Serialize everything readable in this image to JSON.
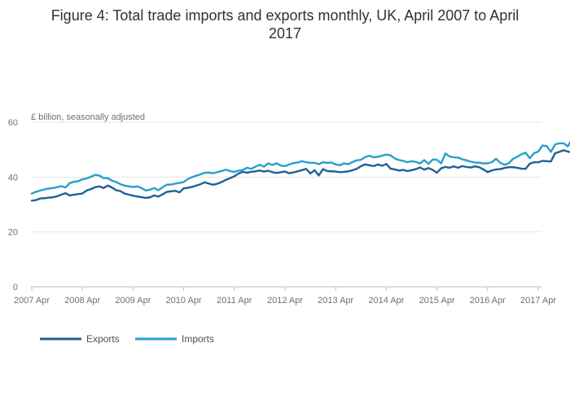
{
  "chart_data": {
    "type": "line",
    "title_line1": "Figure 4: Total trade imports and exports monthly, UK, April 2007 to April",
    "title_line2": "2017",
    "ylabel": "£ billion, seasonally adjusted",
    "ylim": [
      0,
      60
    ],
    "yticks": [
      0,
      20,
      40,
      60
    ],
    "xlim": [
      "2007-04",
      "2017-04"
    ],
    "xticks": [
      "2007 Apr",
      "2008 Apr",
      "2009 Apr",
      "2010 Apr",
      "2011 Apr",
      "2012 Apr",
      "2013 Apr",
      "2014 Apr",
      "2015 Apr",
      "2016 Apr",
      "2017 Apr"
    ],
    "grid": true,
    "legend_position": "bottom-left",
    "x_start": "2007-04",
    "x_end": "2017-04",
    "series": [
      {
        "name": "Exports",
        "color": "#206095",
        "values": [
          31.4,
          31.6,
          32.2,
          32.3,
          32.5,
          32.6,
          33.0,
          33.6,
          34.1,
          33.3,
          33.6,
          33.8,
          34.0,
          35.1,
          35.6,
          36.3,
          36.6,
          36.0,
          36.9,
          36.2,
          35.2,
          34.9,
          34.0,
          33.6,
          33.2,
          32.9,
          32.7,
          32.4,
          32.6,
          33.3,
          32.9,
          33.7,
          34.6,
          34.8,
          35.0,
          34.4,
          35.9,
          36.1,
          36.4,
          36.9,
          37.4,
          38.1,
          37.6,
          37.2,
          37.6,
          38.2,
          39.0,
          39.6,
          40.3,
          41.3,
          41.9,
          41.6,
          41.9,
          42.1,
          42.4,
          42.0,
          42.3,
          41.8,
          41.5,
          41.8,
          42.0,
          41.4,
          41.7,
          42.1,
          42.5,
          43.0,
          41.3,
          42.5,
          40.6,
          42.9,
          42.2,
          42.1,
          42.0,
          41.8,
          41.9,
          42.1,
          42.5,
          43.0,
          44.0,
          44.6,
          44.3,
          44.0,
          44.6,
          44.1,
          44.8,
          43.1,
          42.8,
          42.4,
          42.6,
          42.2,
          42.5,
          42.9,
          43.5,
          42.7,
          43.3,
          42.6,
          41.6,
          43.2,
          43.7,
          43.4,
          43.9,
          43.4,
          44.0,
          43.7,
          43.5,
          43.9,
          43.6,
          42.8,
          41.8,
          42.4,
          42.8,
          42.9,
          43.3,
          43.6,
          43.6,
          43.4,
          43.1,
          43.0,
          44.9,
          45.4,
          45.4,
          45.9,
          45.8,
          45.7,
          48.7,
          49.2,
          49.8,
          49.3,
          48.9,
          49.9,
          50.1
        ]
      },
      {
        "name": "Imports",
        "color": "#27a0cc",
        "values": [
          34.0,
          34.6,
          35.1,
          35.5,
          35.8,
          36.0,
          36.3,
          36.7,
          36.2,
          37.8,
          38.3,
          38.5,
          39.2,
          39.5,
          40.1,
          40.8,
          40.6,
          39.6,
          39.6,
          38.7,
          38.2,
          37.4,
          36.9,
          36.6,
          36.4,
          36.6,
          36.0,
          35.1,
          35.4,
          36.0,
          35.2,
          36.3,
          37.2,
          37.3,
          37.6,
          37.9,
          38.2,
          39.3,
          40.0,
          40.5,
          41.0,
          41.6,
          41.6,
          41.4,
          41.8,
          42.2,
          42.7,
          42.2,
          41.9,
          42.3,
          42.6,
          43.4,
          43.0,
          43.8,
          44.5,
          43.8,
          45.0,
          44.4,
          45.0,
          44.2,
          44.0,
          44.6,
          45.1,
          45.3,
          45.8,
          45.4,
          45.2,
          45.2,
          44.7,
          45.4,
          45.2,
          45.3,
          44.6,
          44.3,
          45.0,
          44.7,
          45.5,
          46.1,
          46.3,
          47.3,
          47.8,
          47.2,
          47.4,
          47.8,
          48.2,
          47.9,
          46.8,
          46.2,
          45.9,
          45.4,
          45.8,
          45.5,
          45.0,
          46.2,
          44.8,
          46.4,
          46.3,
          45.0,
          48.6,
          47.5,
          47.2,
          47.1,
          46.5,
          46.1,
          45.6,
          45.3,
          45.2,
          45.0,
          45.0,
          45.4,
          46.7,
          45.2,
          44.5,
          45.0,
          46.6,
          47.4,
          48.3,
          48.9,
          46.9,
          48.7,
          49.3,
          51.5,
          51.3,
          49.2,
          51.9,
          52.3,
          52.3,
          51.2,
          53.8,
          52.4,
          51.9
        ]
      }
    ]
  }
}
